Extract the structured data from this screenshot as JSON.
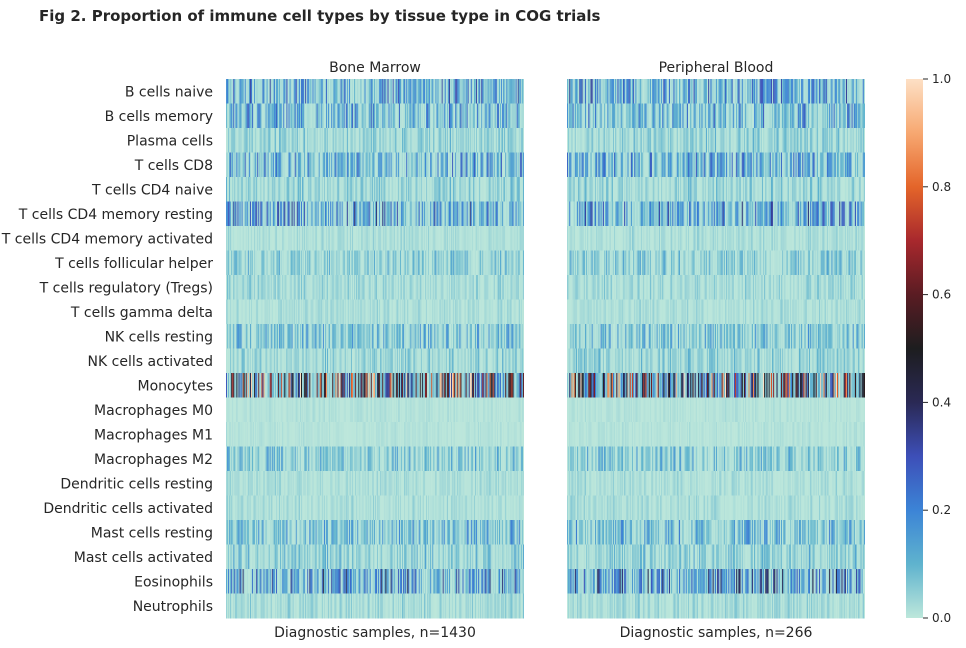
{
  "title": "Fig 2. Proportion of immune cell types by tissue type in COG trials",
  "colormap": {
    "name": "icefire",
    "stops": [
      {
        "v": 0.0,
        "color": "#bde7db"
      },
      {
        "v": 0.1,
        "color": "#5fb3ce"
      },
      {
        "v": 0.2,
        "color": "#3c84d6"
      },
      {
        "v": 0.3,
        "color": "#3d4fb8"
      },
      {
        "v": 0.4,
        "color": "#2a2955"
      },
      {
        "v": 0.5,
        "color": "#1d1d1f"
      },
      {
        "v": 0.6,
        "color": "#5a1c23"
      },
      {
        "v": 0.7,
        "color": "#a8282d"
      },
      {
        "v": 0.8,
        "color": "#e4652a"
      },
      {
        "v": 0.9,
        "color": "#f7a871"
      },
      {
        "v": 1.0,
        "color": "#fde0c5"
      }
    ]
  },
  "chart_data": {
    "type": "heatmap",
    "title": "Fig 2. Proportion of immune cell types by tissue type in COG trials",
    "rows": [
      "B cells naive",
      "B cells memory",
      "Plasma cells",
      "T cells CD8",
      "T cells CD4 naive",
      "T cells CD4 memory resting",
      "T cells CD4 memory activated",
      "T cells follicular helper",
      "T cells regulatory (Tregs)",
      "T cells gamma delta",
      "NK cells resting",
      "NK cells activated",
      "Monocytes",
      "Macrophages M0",
      "Macrophages M1",
      "Macrophages M2",
      "Dendritic cells resting",
      "Dendritic cells activated",
      "Mast cells resting",
      "Mast cells activated",
      "Eosinophils",
      "Neutrophils"
    ],
    "approx_row_mean_proportion": [
      0.12,
      0.1,
      0.04,
      0.1,
      0.04,
      0.13,
      0.02,
      0.05,
      0.03,
      0.02,
      0.07,
      0.04,
      0.38,
      0.01,
      0.01,
      0.06,
      0.02,
      0.02,
      0.08,
      0.05,
      0.15,
      0.03
    ],
    "panels": [
      {
        "title": "Bone Marrow",
        "xlabel": "Diagnostic samples, n=1430",
        "n_samples": 1430
      },
      {
        "title": "Peripheral Blood",
        "xlabel": "Diagnostic samples, n=266",
        "n_samples": 266
      }
    ],
    "colorbar": {
      "range": [
        0.0,
        1.0
      ],
      "ticks": [
        "0.0",
        "0.2",
        "0.4",
        "0.6",
        "0.8",
        "1.0"
      ]
    },
    "grid": false
  }
}
